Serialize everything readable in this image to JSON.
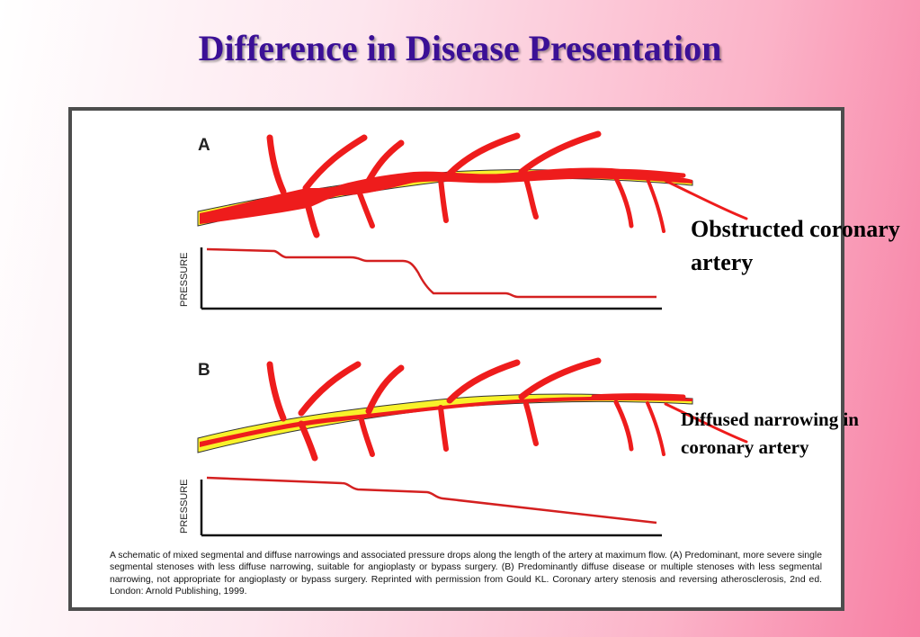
{
  "slide": {
    "title": "Difference in Disease Presentation"
  },
  "figure": {
    "panel_a_label": "A",
    "panel_b_label": "B",
    "y_axis_label_a": "PRESSURE",
    "y_axis_label_b": "PRESSURE",
    "caption": "A schematic of mixed segmental and diffuse narrowings and associated pressure drops along the length of the artery at maximum flow. (A) Predominant, more severe single segmental stenoses with less diffuse narrowing, suitable for angioplasty or bypass surgery. (B) Predominantly diffuse disease or multiple stenoses with less segmental narrowing, not appropriate for angioplasty or bypass surgery. Reprinted with permission from Gould KL. Coronary artery stenosis and reversing atherosclerosis, 2nd ed. London: Arnold Publishing, 1999."
  },
  "labels": {
    "obstructed": "Obstructed coronary artery",
    "diffused": "Diffused narrowing in coronary artery"
  },
  "colors": {
    "title": "#3b1096",
    "artery": "#ee1c1c",
    "plaque": "#f8f22a",
    "pressure_line": "#d42020"
  }
}
